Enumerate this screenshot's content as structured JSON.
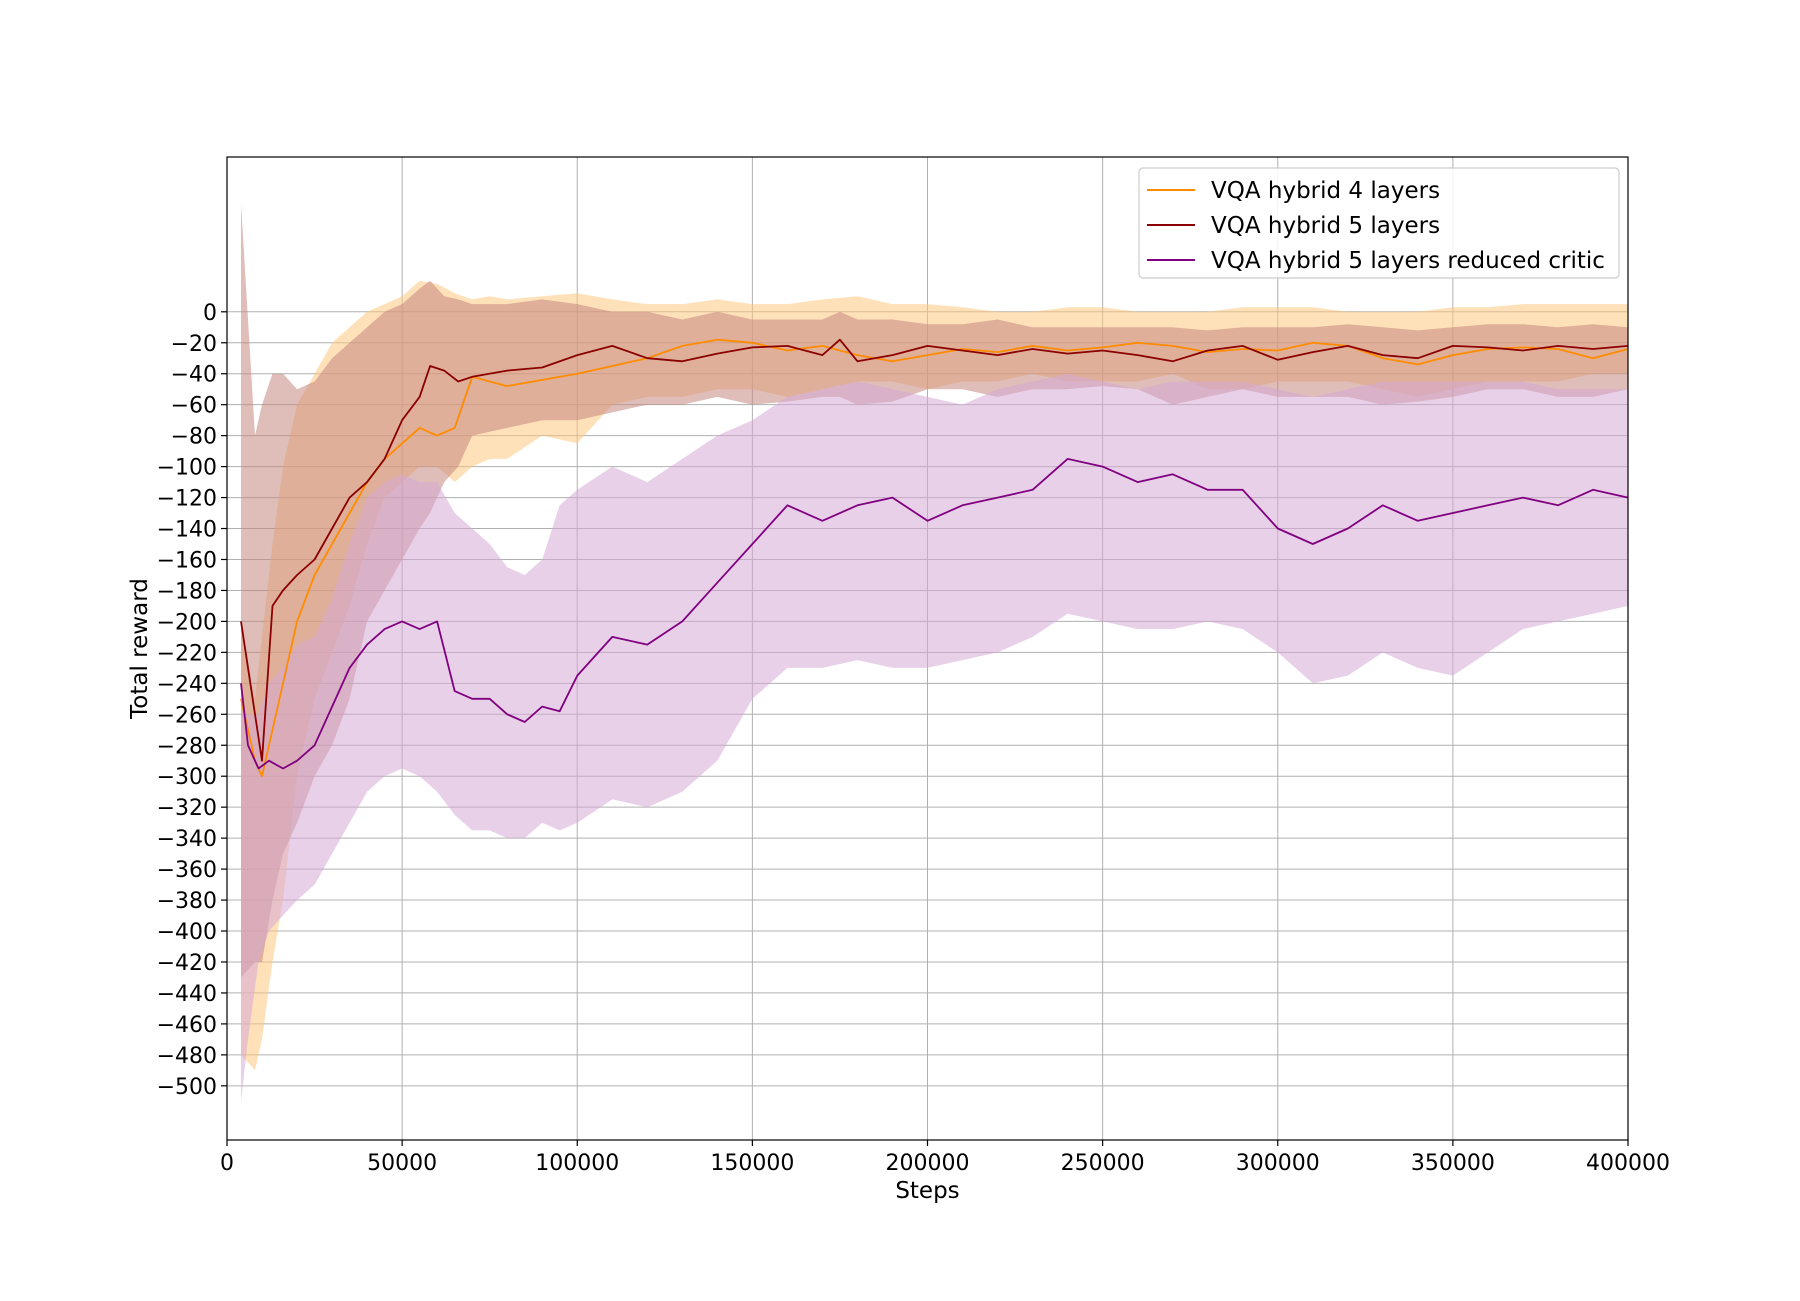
{
  "chart_data": {
    "type": "line",
    "title": "",
    "xlabel": "Steps",
    "ylabel": "Total reward",
    "xlim": [
      0,
      400000
    ],
    "ylim": [
      -535,
      100
    ],
    "xticks": [
      0,
      50000,
      100000,
      150000,
      200000,
      250000,
      300000,
      350000,
      400000
    ],
    "yticks": [
      0,
      -20,
      -40,
      -60,
      -80,
      -100,
      -120,
      -140,
      -160,
      -180,
      -200,
      -220,
      -240,
      -260,
      -280,
      -300,
      -320,
      -340,
      -360,
      -380,
      -400,
      -420,
      -440,
      -460,
      -480,
      -500
    ],
    "grid": true,
    "legend": {
      "position": "top-right"
    },
    "series": [
      {
        "name": "VQA hybrid 4 layers",
        "color": "#ff8c00",
        "band_color": "#ffc880",
        "x": [
          4000,
          8000,
          10000,
          13000,
          16000,
          20000,
          25000,
          30000,
          35000,
          40000,
          45000,
          50000,
          55000,
          60000,
          65000,
          70000,
          75000,
          80000,
          90000,
          100000,
          110000,
          120000,
          130000,
          140000,
          150000,
          160000,
          170000,
          180000,
          190000,
          200000,
          210000,
          220000,
          230000,
          240000,
          250000,
          260000,
          270000,
          280000,
          290000,
          300000,
          310000,
          320000,
          330000,
          340000,
          350000,
          360000,
          370000,
          380000,
          390000,
          400000
        ],
        "y": [
          -250,
          -290,
          -300,
          -270,
          -240,
          -200,
          -170,
          -150,
          -130,
          -110,
          -95,
          -85,
          -75,
          -80,
          -75,
          -42,
          -45,
          -48,
          -44,
          -40,
          -35,
          -30,
          -22,
          -18,
          -20,
          -25,
          -22,
          -28,
          -32,
          -28,
          -24,
          -26,
          -22,
          -25,
          -23,
          -20,
          -22,
          -26,
          -24,
          -25,
          -20,
          -22,
          -30,
          -34,
          -28,
          -24,
          -23,
          -24,
          -30,
          -24
        ],
        "lower": [
          -480,
          -490,
          -470,
          -420,
          -380,
          -300,
          -250,
          -220,
          -190,
          -150,
          -120,
          -110,
          -100,
          -100,
          -110,
          -100,
          -95,
          -95,
          -80,
          -85,
          -60,
          -55,
          -55,
          -50,
          -50,
          -55,
          -50,
          -45,
          -45,
          -50,
          -45,
          -45,
          -40,
          -45,
          -45,
          -45,
          -40,
          -50,
          -50,
          -45,
          -45,
          -45,
          -50,
          -55,
          -50,
          -45,
          -45,
          -45,
          -40,
          -40
        ],
        "upper": [
          -200,
          -250,
          -210,
          -150,
          -100,
          -60,
          -40,
          -20,
          -10,
          0,
          5,
          10,
          20,
          18,
          12,
          8,
          10,
          8,
          10,
          12,
          8,
          5,
          5,
          8,
          5,
          5,
          8,
          10,
          5,
          5,
          3,
          0,
          0,
          3,
          3,
          0,
          0,
          0,
          3,
          3,
          3,
          0,
          0,
          0,
          3,
          3,
          5,
          5,
          5,
          5
        ]
      },
      {
        "name": "VQA hybrid 5 layers",
        "color": "#8b0000",
        "band_color": "#c4877f",
        "x": [
          4000,
          8000,
          10000,
          13000,
          16000,
          20000,
          25000,
          30000,
          35000,
          40000,
          45000,
          50000,
          55000,
          58000,
          62000,
          66000,
          70000,
          80000,
          90000,
          100000,
          110000,
          120000,
          130000,
          140000,
          150000,
          160000,
          170000,
          175000,
          180000,
          190000,
          200000,
          210000,
          220000,
          230000,
          240000,
          250000,
          260000,
          270000,
          280000,
          290000,
          300000,
          310000,
          320000,
          330000,
          340000,
          350000,
          360000,
          370000,
          380000,
          390000,
          400000
        ],
        "y": [
          -200,
          -260,
          -290,
          -190,
          -180,
          -170,
          -160,
          -140,
          -120,
          -110,
          -95,
          -70,
          -55,
          -35,
          -38,
          -45,
          -42,
          -38,
          -36,
          -28,
          -22,
          -30,
          -32,
          -27,
          -23,
          -22,
          -28,
          -18,
          -32,
          -28,
          -22,
          -25,
          -28,
          -24,
          -27,
          -25,
          -28,
          -32,
          -25,
          -22,
          -31,
          -26,
          -22,
          -28,
          -30,
          -22,
          -23,
          -25,
          -22,
          -24,
          -22
        ],
        "lower": [
          -430,
          -420,
          -420,
          -380,
          -350,
          -330,
          -300,
          -280,
          -250,
          -200,
          -180,
          -160,
          -140,
          -130,
          -110,
          -100,
          -80,
          -75,
          -70,
          -70,
          -65,
          -60,
          -60,
          -55,
          -60,
          -58,
          -55,
          -55,
          -60,
          -58,
          -50,
          -50,
          -55,
          -50,
          -50,
          -48,
          -50,
          -60,
          -55,
          -50,
          -55,
          -55,
          -55,
          -60,
          -58,
          -55,
          -50,
          -50,
          -55,
          -55,
          -50
        ],
        "upper": [
          70,
          -80,
          -60,
          -40,
          -40,
          -50,
          -45,
          -30,
          -20,
          -10,
          0,
          5,
          15,
          20,
          10,
          8,
          5,
          5,
          8,
          5,
          0,
          0,
          -5,
          0,
          -5,
          -5,
          -5,
          0,
          -5,
          -5,
          -8,
          -8,
          -5,
          -10,
          -10,
          -10,
          -10,
          -10,
          -12,
          -10,
          -10,
          -10,
          -8,
          -10,
          -12,
          -10,
          -8,
          -8,
          -10,
          -8,
          -10
        ]
      },
      {
        "name": "VQA hybrid 5 layers reduced critic",
        "color": "#800080",
        "band_color": "#d5aad5",
        "x": [
          4000,
          6000,
          9000,
          12000,
          16000,
          20000,
          25000,
          30000,
          35000,
          40000,
          45000,
          50000,
          55000,
          60000,
          65000,
          70000,
          75000,
          80000,
          85000,
          90000,
          95000,
          100000,
          110000,
          120000,
          130000,
          140000,
          150000,
          160000,
          170000,
          180000,
          190000,
          200000,
          210000,
          220000,
          230000,
          240000,
          250000,
          260000,
          270000,
          280000,
          290000,
          300000,
          310000,
          320000,
          330000,
          340000,
          350000,
          360000,
          370000,
          380000,
          390000,
          400000
        ],
        "y": [
          -240,
          -280,
          -295,
          -290,
          -295,
          -290,
          -280,
          -255,
          -230,
          -215,
          -205,
          -200,
          -205,
          -200,
          -245,
          -250,
          -250,
          -260,
          -265,
          -255,
          -258,
          -235,
          -210,
          -215,
          -200,
          -175,
          -150,
          -125,
          -135,
          -125,
          -120,
          -135,
          -125,
          -120,
          -115,
          -95,
          -100,
          -110,
          -105,
          -115,
          -115,
          -140,
          -150,
          -140,
          -125,
          -135,
          -130,
          -125,
          -120,
          -125,
          -115,
          -120
        ],
        "lower": [
          -510,
          -470,
          -420,
          -400,
          -390,
          -380,
          -370,
          -350,
          -330,
          -310,
          -300,
          -295,
          -300,
          -310,
          -325,
          -335,
          -335,
          -340,
          -340,
          -330,
          -335,
          -330,
          -315,
          -320,
          -310,
          -290,
          -250,
          -230,
          -230,
          -225,
          -230,
          -230,
          -225,
          -220,
          -210,
          -195,
          -200,
          -205,
          -205,
          -200,
          -205,
          -220,
          -240,
          -235,
          -220,
          -230,
          -235,
          -220,
          -205,
          -200,
          -195,
          -190
        ],
        "upper": [
          -260,
          -260,
          -260,
          -240,
          -230,
          -215,
          -210,
          -185,
          -150,
          -120,
          -110,
          -105,
          -110,
          -110,
          -130,
          -140,
          -150,
          -165,
          -170,
          -160,
          -125,
          -115,
          -100,
          -110,
          -95,
          -80,
          -70,
          -55,
          -50,
          -45,
          -50,
          -55,
          -60,
          -50,
          -45,
          -40,
          -45,
          -50,
          -45,
          -45,
          -45,
          -50,
          -55,
          -50,
          -45,
          -45,
          -45,
          -45,
          -45,
          -50,
          -50,
          -50
        ]
      }
    ]
  }
}
